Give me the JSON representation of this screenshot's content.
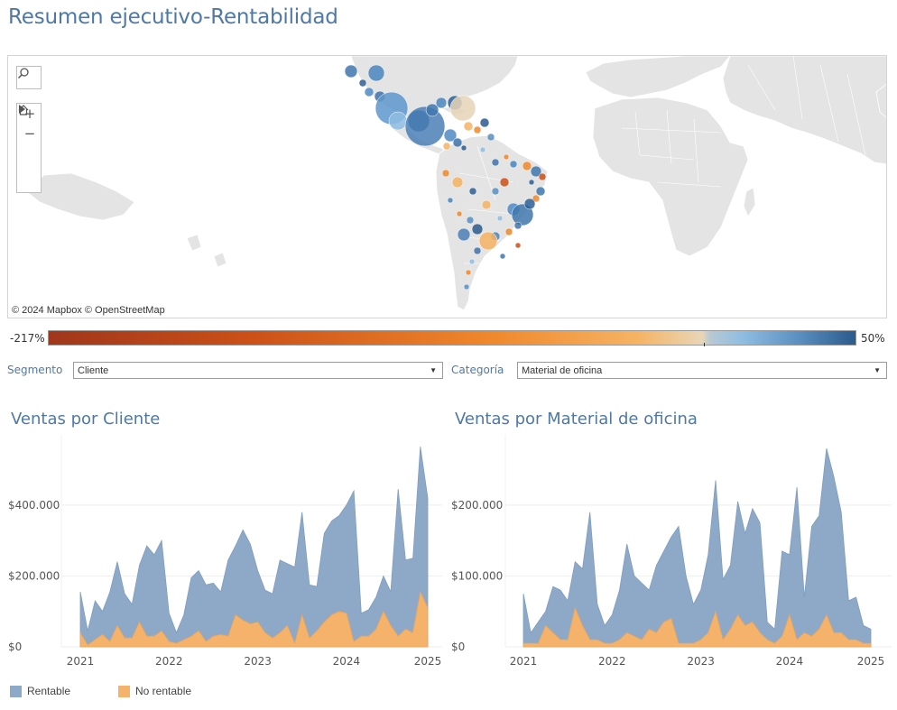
{
  "page": {
    "title": "Resumen ejecutivo-Rentabilidad"
  },
  "map": {
    "credit": "© 2024 Mapbox  © OpenStreetMap",
    "controls": [
      "search-icon",
      "zoom-in-icon",
      "zoom-out-icon",
      "home-icon",
      "play-icon"
    ],
    "land_color": "#e4e4e4"
  },
  "color_legend": {
    "min_label": "-217%",
    "max_label": "50%"
  },
  "filters": {
    "segmento": {
      "label": "Segmento",
      "value": "Cliente"
    },
    "categoria": {
      "label": "Categoría",
      "value": "Material de oficina"
    }
  },
  "colors": {
    "rentable": "#8ea9c7",
    "no_rentable": "#f5b26b",
    "title": "#4e79a7"
  },
  "legend": {
    "rentable": "Rentable",
    "no_rentable": "No rentable"
  },
  "chart_data": [
    {
      "type": "area",
      "title": "Ventas por Cliente",
      "x_tick_labels": [
        "2021",
        "2022",
        "2023",
        "2024",
        "2025"
      ],
      "y_tick_labels": [
        "$0",
        "$200.000",
        "$400.000"
      ],
      "ylim": [
        0,
        560000
      ],
      "x_start": "2021-01",
      "x_end": "2024-12",
      "series": [
        {
          "name": "Rentable",
          "values": [
            155000,
            45000,
            130000,
            100000,
            155000,
            240000,
            150000,
            120000,
            230000,
            285000,
            260000,
            300000,
            95000,
            40000,
            90000,
            195000,
            215000,
            175000,
            180000,
            155000,
            245000,
            285000,
            330000,
            290000,
            215000,
            160000,
            150000,
            245000,
            235000,
            225000,
            380000,
            175000,
            170000,
            320000,
            355000,
            370000,
            400000,
            440000,
            95000,
            105000,
            140000,
            200000,
            155000,
            445000,
            245000,
            250000,
            565000,
            420000
          ]
        },
        {
          "name": "No rentable",
          "values": [
            40000,
            5000,
            20000,
            35000,
            15000,
            60000,
            25000,
            25000,
            70000,
            30000,
            30000,
            45000,
            15000,
            10000,
            20000,
            30000,
            45000,
            15000,
            30000,
            35000,
            30000,
            90000,
            75000,
            65000,
            70000,
            40000,
            25000,
            40000,
            60000,
            10000,
            90000,
            25000,
            45000,
            70000,
            90000,
            100000,
            95000,
            15000,
            30000,
            30000,
            50000,
            100000,
            60000,
            30000,
            50000,
            40000,
            155000,
            110000
          ]
        }
      ]
    },
    {
      "type": "area",
      "title": "Ventas por Material de oficina",
      "x_tick_labels": [
        "2021",
        "2022",
        "2023",
        "2024",
        "2025"
      ],
      "y_tick_labels": [
        "$0",
        "$100.000",
        "$200.000"
      ],
      "ylim": [
        0,
        280000
      ],
      "x_start": "2021-01",
      "x_end": "2024-12",
      "series": [
        {
          "name": "Rentable",
          "values": [
            75000,
            20000,
            35000,
            50000,
            85000,
            80000,
            65000,
            120000,
            110000,
            190000,
            60000,
            30000,
            45000,
            80000,
            145000,
            100000,
            90000,
            80000,
            115000,
            135000,
            155000,
            170000,
            100000,
            60000,
            80000,
            130000,
            235000,
            95000,
            115000,
            205000,
            160000,
            195000,
            175000,
            35000,
            25000,
            135000,
            130000,
            225000,
            70000,
            170000,
            185000,
            280000,
            240000,
            190000,
            65000,
            70000,
            30000,
            25000
          ]
        },
        {
          "name": "No rentable",
          "values": [
            5000,
            5000,
            5000,
            30000,
            20000,
            10000,
            10000,
            55000,
            30000,
            10000,
            10000,
            5000,
            5000,
            10000,
            20000,
            15000,
            10000,
            25000,
            20000,
            35000,
            40000,
            5000,
            5000,
            5000,
            10000,
            20000,
            50000,
            10000,
            25000,
            45000,
            30000,
            35000,
            20000,
            10000,
            5000,
            15000,
            45000,
            10000,
            20000,
            15000,
            25000,
            45000,
            20000,
            20000,
            10000,
            10000,
            5000,
            5000
          ]
        }
      ]
    }
  ]
}
